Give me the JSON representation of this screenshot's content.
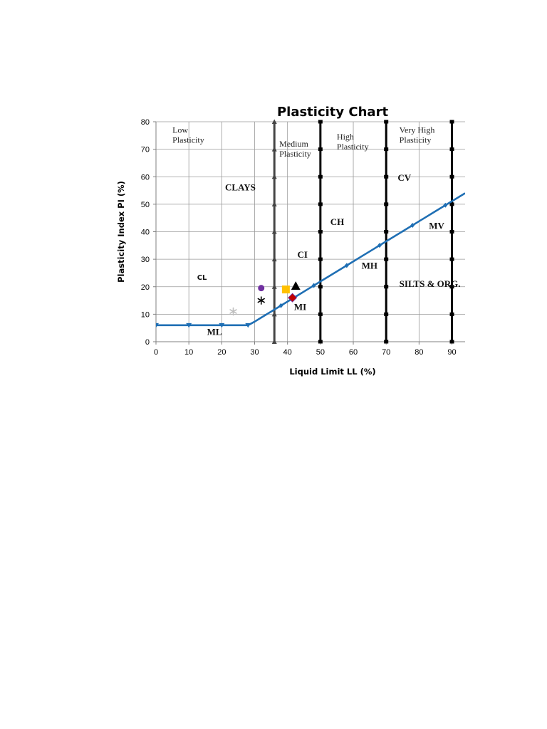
{
  "chart_data": {
    "type": "line",
    "title": "Plasticity Chart",
    "xlabel": "Liquid Limit LL (%)",
    "ylabel": "Plasticity Index PI (%)",
    "xlim": [
      0,
      94
    ],
    "ylim": [
      0,
      80
    ],
    "xticks": [
      "0",
      "10",
      "20",
      "30",
      "40",
      "50",
      "60",
      "70",
      "80",
      "90"
    ],
    "yticks": [
      "0",
      "10",
      "20",
      "30",
      "40",
      "50",
      "60",
      "70",
      "80"
    ],
    "grid": true,
    "series": [
      {
        "color": "#1f6fb4",
        "x": [
          0,
          10,
          20,
          28,
          30,
          32,
          34,
          36,
          38,
          40,
          42,
          44,
          46,
          48,
          50,
          52,
          54,
          56,
          58,
          60,
          62,
          64,
          66,
          68,
          70,
          72,
          74,
          76,
          78,
          80,
          82,
          84,
          86,
          88,
          90,
          92,
          94
        ],
        "y": [
          6,
          6,
          6,
          6,
          7.3,
          8.76,
          10.22,
          11.68,
          13.14,
          14.6,
          16.06,
          17.52,
          18.98,
          20.44,
          21.9,
          23.36,
          24.82,
          26.28,
          27.74,
          29.2,
          30.66,
          32.12,
          33.58,
          35.04,
          36.5,
          37.96,
          39.42,
          40.88,
          42.34,
          43.8,
          45.26,
          46.72,
          48.18,
          49.64,
          51.1,
          52.56,
          54.02
        ],
        "markers_x": [
          0,
          10,
          20,
          28,
          38,
          48,
          58,
          68,
          78,
          88
        ]
      }
    ],
    "boundaries": [
      {
        "x": 36,
        "color": "#444444"
      },
      {
        "x": 50,
        "color": "#000000"
      },
      {
        "x": 70,
        "color": "#000000"
      },
      {
        "x": 90,
        "color": "#000000"
      }
    ],
    "zone_labels": [
      {
        "lines": [
          "Low",
          "Plasticity"
        ],
        "x": 5,
        "y": 76
      },
      {
        "lines": [
          "Medium",
          "Plasticity"
        ],
        "x": 37.5,
        "y": 71
      },
      {
        "lines": [
          "High",
          "Plasticity"
        ],
        "x": 55,
        "y": 73.5
      },
      {
        "lines": [
          "Very High",
          "Plasticity"
        ],
        "x": 74,
        "y": 76
      }
    ],
    "region_labels": [
      {
        "text": "CLAYS",
        "x": 21,
        "y": 55,
        "style": "serif"
      },
      {
        "text": "CL",
        "x": 12.5,
        "y": 22.5,
        "style": "sans"
      },
      {
        "text": "ML",
        "x": 15.5,
        "y": 2.5,
        "style": "serif"
      },
      {
        "text": "CI",
        "x": 43,
        "y": 30.5,
        "style": "serif"
      },
      {
        "text": "MI",
        "x": 42,
        "y": 11.5,
        "style": "serif"
      },
      {
        "text": "CH",
        "x": 53,
        "y": 42.5,
        "style": "serif"
      },
      {
        "text": "MH",
        "x": 62.5,
        "y": 26.5,
        "style": "serif"
      },
      {
        "text": "CV",
        "x": 73.5,
        "y": 58.5,
        "style": "serif"
      },
      {
        "text": "MV",
        "x": 83,
        "y": 41,
        "style": "serif"
      },
      {
        "text": "SILTS & ORG.",
        "x": 74,
        "y": 20,
        "style": "serif"
      }
    ],
    "samples": [
      {
        "shape": "circle",
        "color": "#7030a0",
        "x": 32,
        "y": 19.5
      },
      {
        "shape": "asterisk",
        "color": "#000000",
        "x": 32,
        "y": 15
      },
      {
        "shape": "asterisk",
        "color": "#bfbfbf",
        "x": 23.5,
        "y": 11
      },
      {
        "shape": "square",
        "color": "#ffc000",
        "x": 39.5,
        "y": 19
      },
      {
        "shape": "triangle",
        "color": "#000000",
        "x": 42.5,
        "y": 20.3
      },
      {
        "shape": "diamond",
        "color": "#c00000",
        "x": 41.5,
        "y": 16
      }
    ]
  }
}
